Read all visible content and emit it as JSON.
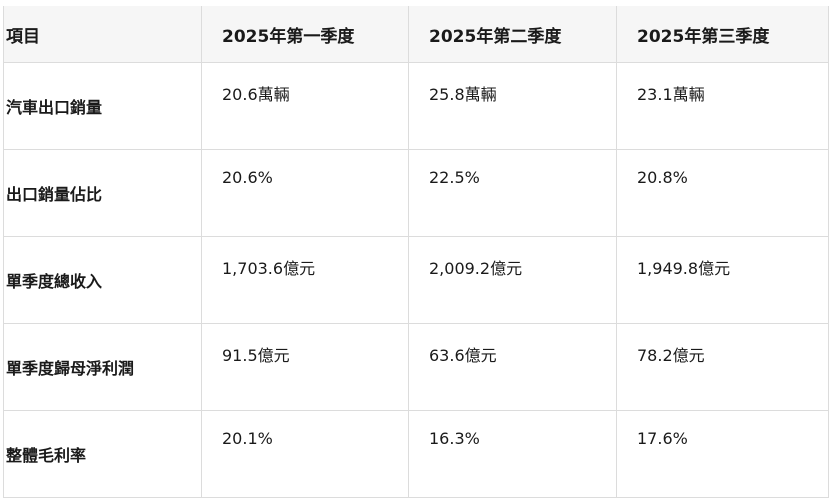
{
  "table": {
    "headers": [
      "項目",
      "2025年第一季度",
      "2025年第二季度",
      "2025年第三季度"
    ],
    "rows": [
      {
        "label": "汽車出口銷量",
        "values": [
          "20.6萬輛",
          "25.8萬輛",
          "23.1萬輛"
        ]
      },
      {
        "label": "出口銷量佔比",
        "values": [
          "20.6%",
          "22.5%",
          "20.8%"
        ]
      },
      {
        "label": "單季度總收入",
        "values": [
          "1,703.6億元",
          "2,009.2億元",
          "1,949.8億元"
        ]
      },
      {
        "label": "單季度歸母淨利潤",
        "values": [
          "91.5億元",
          "63.6億元",
          "78.2億元"
        ]
      },
      {
        "label": "整體毛利率",
        "values": [
          "20.1%",
          "16.3%",
          "17.6%"
        ]
      }
    ]
  }
}
